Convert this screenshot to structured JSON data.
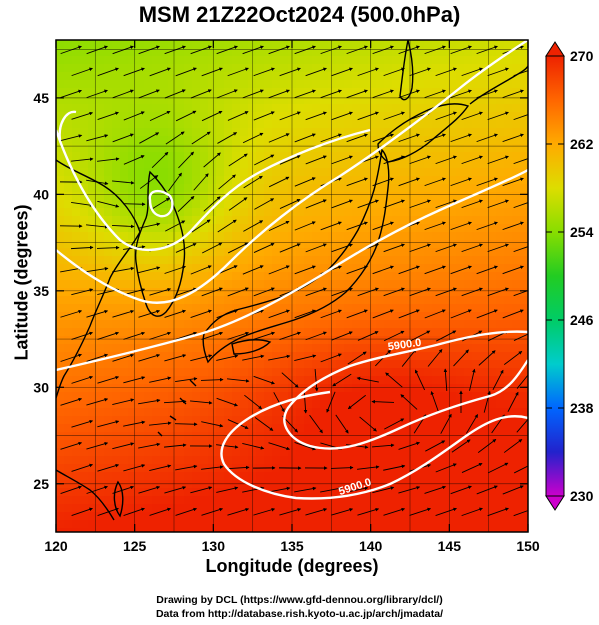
{
  "chart_data": {
    "type": "heatmap",
    "title": "MSM 21Z22Oct2024 (500.0hPa)",
    "xlabel": "Longitude (degrees)",
    "ylabel": "Latitude  (degrees)",
    "xlim": [
      120,
      150
    ],
    "ylim": [
      22.5,
      48
    ],
    "x_ticks": [
      120,
      125,
      130,
      135,
      140,
      145,
      150
    ],
    "y_ticks": [
      25,
      30,
      35,
      40,
      45
    ],
    "grid": true,
    "colorbar": {
      "range": [
        230,
        270
      ],
      "ticks": [
        230,
        238,
        246,
        254,
        262,
        270
      ],
      "colors": [
        "#cc00cc",
        "#2222cc",
        "#0066ff",
        "#00cccc",
        "#00cc66",
        "#22cc22",
        "#88dd00",
        "#dddd00",
        "#ffaa00",
        "#ff6600",
        "#ee2200"
      ],
      "placement": "right"
    },
    "contours": [
      {
        "label": "5900.0",
        "value": 5900
      },
      {
        "label": "5900.0",
        "value": 5900
      }
    ]
  },
  "credits": {
    "line1": "Drawing by DCL (https://www.gfd-dennou.org/library/dcl/)",
    "line2": "Data from http://database.rish.kyoto-u.ac.jp/arch/jmadata/"
  }
}
